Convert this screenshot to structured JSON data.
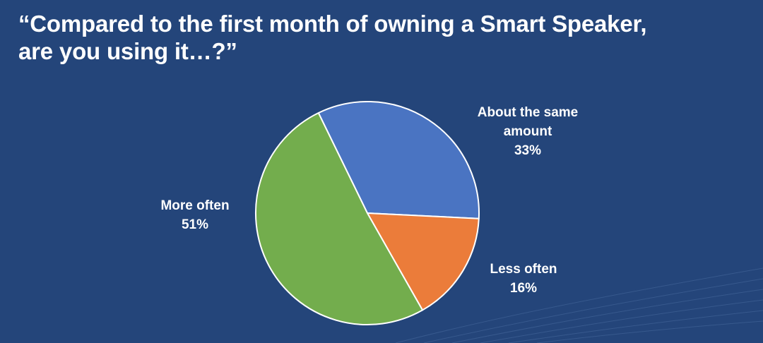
{
  "title_lines": [
    "“Compared to the first month of owning a Smart Speaker,",
    "are you using it…?”"
  ],
  "colors": {
    "background": "#24457a",
    "about_the_same": "#4a74c2",
    "less_often": "#eb7c3a",
    "more_often": "#73ad4d",
    "slice_border": "#ffffff"
  },
  "chart_data": {
    "type": "pie",
    "title": "“Compared to the first month of owning a Smart Speaker, are you using it…?”",
    "slices": [
      {
        "label_lines": [
          "About the same",
          "amount"
        ],
        "label": "About the same amount",
        "value": 33,
        "value_text": "33%",
        "color": "#4a74c2"
      },
      {
        "label_lines": [
          "Less often"
        ],
        "label": "Less often",
        "value": 16,
        "value_text": "16%",
        "color": "#eb7c3a"
      },
      {
        "label_lines": [
          "More often"
        ],
        "label": "More often",
        "value": 51,
        "value_text": "51%",
        "color": "#73ad4d"
      }
    ],
    "start_angle_deg": -26,
    "direction": "clockwise"
  }
}
